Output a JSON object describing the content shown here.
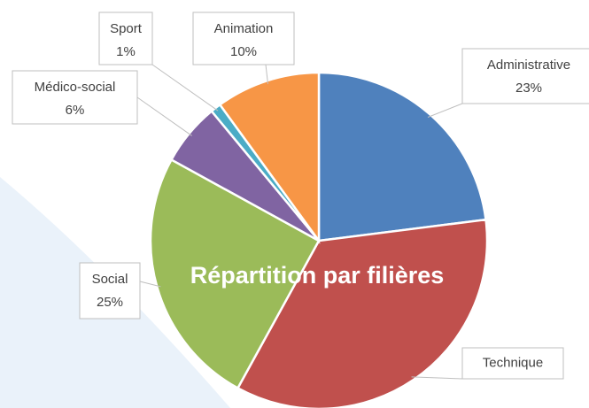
{
  "chart_data": {
    "type": "pie",
    "title": "Répartition par filières",
    "categories": [
      "Administrative",
      "Technique",
      "Social",
      "Médico-social",
      "Sport",
      "Animation"
    ],
    "values": [
      23,
      35,
      25,
      6,
      1,
      10
    ],
    "value_labels": [
      "23%",
      null,
      "25%",
      "6%",
      "1%",
      "10%"
    ],
    "colors": [
      "#4f81bd",
      "#c0504d",
      "#9bbb59",
      "#8064a2",
      "#4bacc6",
      "#f79646"
    ]
  }
}
